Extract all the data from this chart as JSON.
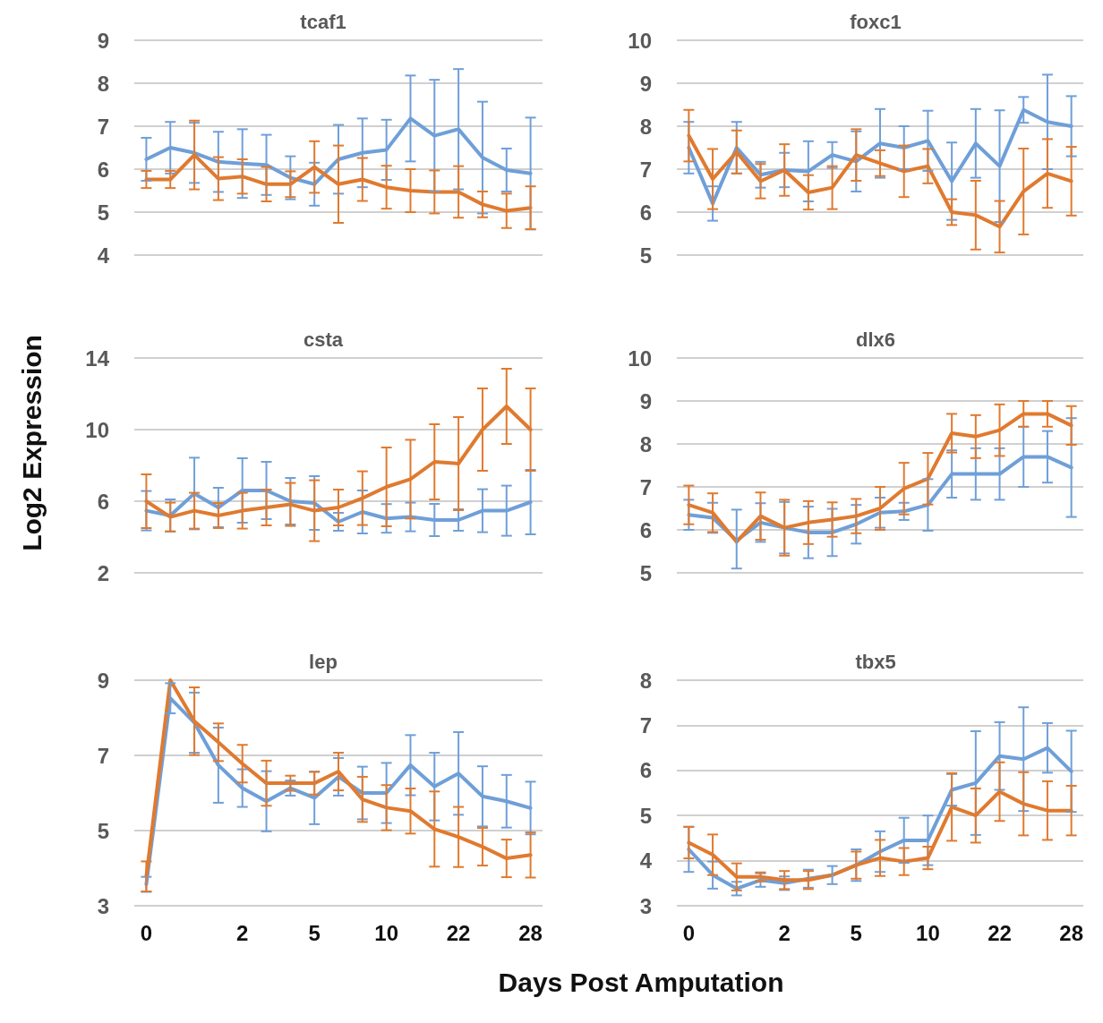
{
  "chart_data": [
    {
      "type": "line",
      "title": "tcaf1",
      "categories": [
        "0",
        null,
        null,
        null,
        "2",
        null,
        null,
        "5",
        null,
        null,
        "10",
        null,
        null,
        "22",
        null,
        null,
        "28"
      ],
      "ylim": [
        4,
        9
      ],
      "yticks": [
        4,
        5,
        6,
        7,
        8,
        9
      ],
      "grid": "y",
      "marker": "none",
      "line_style": "solid",
      "tick_labels": "y",
      "series": [
        {
          "color": "#6f9fd8",
          "values": [
            6.23,
            6.5,
            6.38,
            6.17,
            6.13,
            6.1,
            5.8,
            5.65,
            6.23,
            6.38,
            6.45,
            7.18,
            6.78,
            6.93,
            6.27,
            5.98,
            5.9
          ],
          "errors": [
            0.5,
            0.6,
            0.7,
            0.7,
            0.8,
            0.7,
            0.5,
            0.5,
            0.8,
            0.8,
            0.7,
            1.0,
            1.3,
            1.4,
            1.3,
            0.5,
            1.3
          ]
        },
        {
          "color": "#e07a2f",
          "values": [
            5.76,
            5.76,
            6.33,
            5.78,
            5.83,
            5.65,
            5.65,
            6.05,
            5.65,
            5.76,
            5.58,
            5.5,
            5.47,
            5.47,
            5.18,
            5.03,
            5.1
          ],
          "errors": [
            0.2,
            0.2,
            0.8,
            0.5,
            0.4,
            0.4,
            0.3,
            0.6,
            0.9,
            0.5,
            0.5,
            0.5,
            0.5,
            0.6,
            0.3,
            0.4,
            0.5
          ]
        }
      ]
    },
    {
      "type": "line",
      "title": "foxc1",
      "categories": [
        "0",
        null,
        null,
        null,
        "2",
        null,
        null,
        "5",
        null,
        null,
        "10",
        null,
        null,
        "22",
        null,
        null,
        "28"
      ],
      "ylim": [
        5,
        10
      ],
      "yticks": [
        5,
        6,
        7,
        8,
        9,
        10
      ],
      "grid": "y",
      "marker": "none",
      "line_style": "solid",
      "tick_labels": "y",
      "series": [
        {
          "color": "#6f9fd8",
          "values": [
            7.5,
            6.2,
            7.5,
            6.87,
            6.98,
            6.95,
            7.33,
            7.18,
            7.6,
            7.5,
            7.66,
            6.72,
            7.6,
            7.07,
            8.38,
            8.1,
            8.0
          ],
          "errors": [
            0.6,
            0.4,
            0.6,
            0.3,
            0.4,
            0.7,
            0.3,
            0.7,
            0.8,
            0.5,
            0.7,
            0.9,
            0.8,
            1.3,
            0.3,
            1.1,
            0.7
          ]
        },
        {
          "color": "#e07a2f",
          "values": [
            7.78,
            6.77,
            7.4,
            6.72,
            6.98,
            6.46,
            6.57,
            7.33,
            7.14,
            6.95,
            7.07,
            6.0,
            5.93,
            5.66,
            6.48,
            6.9,
            6.72
          ],
          "errors": [
            0.6,
            0.7,
            0.5,
            0.4,
            0.6,
            0.4,
            0.5,
            0.6,
            0.3,
            0.6,
            0.4,
            0.3,
            0.8,
            0.6,
            1.0,
            0.8,
            0.8
          ]
        }
      ]
    },
    {
      "type": "line",
      "title": "csta",
      "ylabel": "Log2 Expression",
      "categories": [
        "0",
        null,
        null,
        null,
        "2",
        null,
        null,
        "5",
        null,
        null,
        "10",
        null,
        null,
        "22",
        null,
        null,
        "28"
      ],
      "ylim": [
        2,
        14
      ],
      "yticks": [
        2,
        6,
        10,
        14
      ],
      "grid": "y",
      "marker": "none",
      "line_style": "solid",
      "tick_labels": "y",
      "series": [
        {
          "color": "#6f9fd8",
          "values": [
            5.47,
            5.2,
            6.43,
            5.65,
            6.6,
            6.6,
            6.0,
            5.9,
            4.85,
            5.4,
            5.04,
            5.12,
            4.95,
            4.95,
            5.47,
            5.47,
            5.95
          ],
          "errors": [
            1.1,
            0.9,
            2.0,
            1.1,
            1.8,
            1.6,
            1.3,
            1.5,
            0.5,
            1.2,
            0.8,
            0.8,
            0.9,
            0.6,
            1.2,
            1.4,
            1.8
          ]
        },
        {
          "color": "#e07a2f",
          "values": [
            6.0,
            5.12,
            5.47,
            5.2,
            5.47,
            5.65,
            5.82,
            5.47,
            5.65,
            6.17,
            6.8,
            7.23,
            8.2,
            8.1,
            10.0,
            11.3,
            10.0
          ],
          "errors": [
            1.5,
            0.8,
            1.0,
            0.7,
            1.0,
            1.0,
            1.2,
            1.7,
            1.0,
            1.5,
            2.2,
            2.2,
            2.1,
            2.6,
            2.3,
            2.1,
            2.3
          ]
        }
      ]
    },
    {
      "type": "line",
      "title": "dlx6",
      "categories": [
        "0",
        null,
        null,
        null,
        "2",
        null,
        null,
        "5",
        null,
        null,
        "10",
        null,
        null,
        "22",
        null,
        null,
        "28"
      ],
      "ylim": [
        5,
        10
      ],
      "yticks": [
        5,
        6,
        7,
        8,
        9,
        10
      ],
      "grid": "y",
      "marker": "none",
      "line_style": "solid",
      "tick_labels": "y",
      "series": [
        {
          "color": "#6f9fd8",
          "values": [
            6.35,
            6.28,
            5.75,
            6.17,
            6.05,
            5.94,
            5.94,
            6.13,
            6.4,
            6.43,
            6.58,
            7.3,
            7.3,
            7.3,
            7.7,
            7.7,
            7.45
          ],
          "errors": [
            0.35,
            0.35,
            [
              5.1,
              6.47
            ],
            0.45,
            0.6,
            0.6,
            0.55,
            0.45,
            0.35,
            0.2,
            0.6,
            0.55,
            0.6,
            0.6,
            0.7,
            0.6,
            1.15
          ]
        },
        {
          "color": "#e07a2f",
          "values": [
            6.58,
            6.4,
            5.72,
            6.32,
            6.05,
            6.17,
            6.24,
            6.32,
            6.5,
            6.96,
            7.19,
            8.25,
            8.17,
            8.32,
            8.7,
            8.7,
            8.43
          ],
          "errors": [
            0.45,
            0.45,
            null,
            0.55,
            0.65,
            0.5,
            0.4,
            0.4,
            0.5,
            0.6,
            0.6,
            0.45,
            0.5,
            0.6,
            0.3,
            0.3,
            0.45
          ]
        }
      ]
    },
    {
      "type": "line",
      "title": "lep",
      "xlabel": "Days Post Amputation",
      "categories": [
        "0",
        null,
        null,
        null,
        "2",
        null,
        null,
        "5",
        null,
        null,
        "10",
        null,
        null,
        "22",
        null,
        null,
        "28"
      ],
      "ylim": [
        3,
        9
      ],
      "yticks": [
        3,
        5,
        7,
        9
      ],
      "grid": "y",
      "marker": "none",
      "line_style": "solid",
      "series": [
        {
          "color": "#6f9fd8",
          "values": [
            3.57,
            8.52,
            7.87,
            6.74,
            6.13,
            5.78,
            6.13,
            5.87,
            6.43,
            6.0,
            6.0,
            6.74,
            6.17,
            6.52,
            5.91,
            5.78,
            5.6
          ],
          "errors": [
            0.2,
            0.4,
            0.8,
            1.0,
            0.5,
            0.8,
            0.2,
            0.7,
            0.5,
            0.7,
            0.8,
            0.8,
            0.9,
            1.1,
            0.8,
            0.7,
            0.7
          ]
        },
        {
          "color": "#e07a2f",
          "values": [
            3.78,
            9.0,
            7.91,
            7.35,
            6.78,
            6.26,
            6.26,
            6.26,
            6.57,
            5.83,
            5.61,
            5.52,
            5.04,
            4.83,
            4.57,
            4.26,
            4.35
          ],
          "errors": [
            0.4,
            null,
            0.9,
            0.5,
            0.5,
            0.6,
            0.2,
            0.3,
            0.5,
            0.6,
            0.6,
            0.6,
            1.0,
            0.8,
            0.5,
            0.5,
            0.6
          ]
        }
      ]
    },
    {
      "type": "line",
      "title": "tbx5",
      "categories": [
        "0",
        null,
        null,
        null,
        "2",
        null,
        null,
        "5",
        null,
        null,
        "10",
        null,
        null,
        "22",
        null,
        null,
        "28"
      ],
      "ylim": [
        3,
        8
      ],
      "yticks": [
        3,
        4,
        5,
        6,
        7,
        8
      ],
      "grid": "y",
      "marker": "none",
      "line_style": "solid",
      "series": [
        {
          "color": "#6f9fd8",
          "values": [
            4.25,
            3.68,
            3.38,
            3.57,
            3.5,
            3.6,
            3.68,
            3.9,
            4.2,
            4.45,
            4.45,
            5.57,
            5.72,
            6.32,
            6.25,
            6.5,
            5.98
          ],
          "errors": [
            0.5,
            0.3,
            0.15,
            0.15,
            0.15,
            0.2,
            0.2,
            0.35,
            0.45,
            0.5,
            0.55,
            0.35,
            1.15,
            0.75,
            1.15,
            0.55,
            0.9
          ]
        },
        {
          "color": "#e07a2f",
          "values": [
            4.4,
            4.13,
            3.64,
            3.64,
            3.57,
            3.57,
            3.68,
            3.9,
            4.06,
            3.98,
            4.06,
            5.19,
            5.0,
            5.53,
            5.26,
            5.11,
            5.11
          ],
          "errors": [
            0.35,
            0.45,
            0.3,
            0.1,
            0.2,
            0.2,
            null,
            0.3,
            0.4,
            0.3,
            0.25,
            0.75,
            0.6,
            0.65,
            0.7,
            0.65,
            0.55
          ]
        }
      ]
    }
  ]
}
